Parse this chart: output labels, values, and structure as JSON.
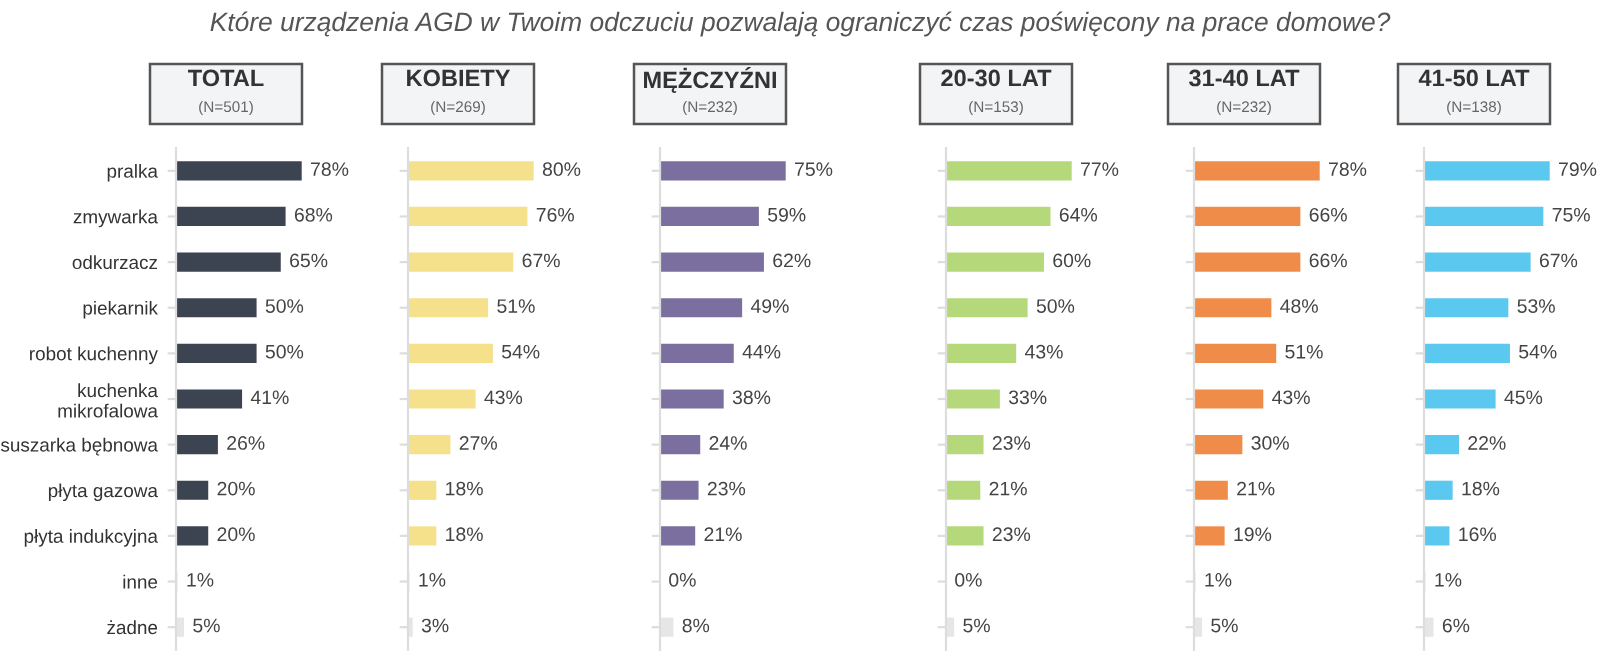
{
  "chart_data": [
    {
      "type": "bar",
      "orientation": "horizontal",
      "title": "TOTAL",
      "subtitle": "(N=501)",
      "annotations": [
        "Które urządzenia AGD w Twoim odczuciu pozwalają ograniczyć czas poświęcony na prace domowe?"
      ],
      "categories": [
        "pralka",
        "zmywarka",
        "odkurzacz",
        "piekarnik",
        "robot kuchenny",
        "kuchenka\nmikrofalowa",
        "suszarka bębnowa",
        "płyta gazowa",
        "płyta indukcyjna",
        "inne",
        "żadne"
      ],
      "tick_labels": "y",
      "series": [
        {
          "colors": [
            "#3d4451",
            "#3d4451",
            "#3d4451",
            "#3d4451",
            "#3d4451",
            "#3d4451",
            "#3d4451",
            "#3d4451",
            "#3d4451",
            "#e6e6e6",
            "#e6e6e6"
          ],
          "values": [
            78,
            68,
            65,
            50,
            50,
            41,
            26,
            20,
            20,
            1,
            5
          ],
          "value_labels": [
            "78%",
            "68%",
            "65%",
            "50%",
            "50%",
            "41%",
            "26%",
            "20%",
            "20%",
            "1%",
            "5%"
          ]
        }
      ]
    },
    {
      "type": "bar",
      "orientation": "horizontal",
      "title": "KOBIETY",
      "subtitle": "(N=269)",
      "categories": [
        null,
        null,
        null,
        null,
        null,
        null,
        null,
        null,
        null,
        null,
        null
      ],
      "tick_labels": false,
      "series": [
        {
          "colors": [
            "#f5e08c",
            "#f5e08c",
            "#f5e08c",
            "#f5e08c",
            "#f5e08c",
            "#f5e08c",
            "#f5e08c",
            "#f5e08c",
            "#f5e08c",
            "#e6e6e6",
            "#e6e6e6"
          ],
          "values": [
            80,
            76,
            67,
            51,
            54,
            43,
            27,
            18,
            18,
            1,
            3
          ],
          "value_labels": [
            "80%",
            "76%",
            "67%",
            "51%",
            "54%",
            "43%",
            "27%",
            "18%",
            "18%",
            "1%",
            "3%"
          ]
        }
      ]
    },
    {
      "type": "bar",
      "orientation": "horizontal",
      "title": "MĘŻCZYŹNI",
      "subtitle": "(N=232)",
      "categories": [
        null,
        null,
        null,
        null,
        null,
        null,
        null,
        null,
        null,
        null,
        null
      ],
      "tick_labels": false,
      "series": [
        {
          "colors": [
            "#7b6fa0",
            "#7b6fa0",
            "#7b6fa0",
            "#7b6fa0",
            "#7b6fa0",
            "#7b6fa0",
            "#7b6fa0",
            "#7b6fa0",
            "#7b6fa0",
            "#e6e6e6",
            "#e6e6e6"
          ],
          "values": [
            75,
            59,
            62,
            49,
            44,
            38,
            24,
            23,
            21,
            0,
            8
          ],
          "value_labels": [
            "75%",
            "59%",
            "62%",
            "49%",
            "44%",
            "38%",
            "24%",
            "23%",
            "21%",
            "0%",
            "8%"
          ]
        }
      ]
    },
    {
      "type": "bar",
      "orientation": "horizontal",
      "title": "20-30 LAT",
      "subtitle": "(N=153)",
      "categories": [
        null,
        null,
        null,
        null,
        null,
        null,
        null,
        null,
        null,
        null,
        null
      ],
      "tick_labels": false,
      "series": [
        {
          "colors": [
            "#b5d97a",
            "#b5d97a",
            "#b5d97a",
            "#b5d97a",
            "#b5d97a",
            "#b5d97a",
            "#b5d97a",
            "#b5d97a",
            "#b5d97a",
            "#e6e6e6",
            "#e6e6e6"
          ],
          "values": [
            77,
            64,
            60,
            50,
            43,
            33,
            23,
            21,
            23,
            0,
            5
          ],
          "value_labels": [
            "77%",
            "64%",
            "60%",
            "50%",
            "43%",
            "33%",
            "23%",
            "21%",
            "23%",
            "0%",
            "5%"
          ]
        }
      ]
    },
    {
      "type": "bar",
      "orientation": "horizontal",
      "title": "31-40 LAT",
      "subtitle": "(N=232)",
      "categories": [
        null,
        null,
        null,
        null,
        null,
        null,
        null,
        null,
        null,
        null,
        null
      ],
      "tick_labels": false,
      "series": [
        {
          "colors": [
            "#f08c4a",
            "#f08c4a",
            "#f08c4a",
            "#f08c4a",
            "#f08c4a",
            "#f08c4a",
            "#f08c4a",
            "#f08c4a",
            "#f08c4a",
            "#e6e6e6",
            "#e6e6e6"
          ],
          "values": [
            78,
            66,
            66,
            48,
            51,
            43,
            30,
            21,
            19,
            1,
            5
          ],
          "value_labels": [
            "78%",
            "66%",
            "66%",
            "48%",
            "51%",
            "43%",
            "30%",
            "21%",
            "19%",
            "1%",
            "5%"
          ]
        }
      ]
    },
    {
      "type": "bar",
      "orientation": "horizontal",
      "title": "41-50 LAT",
      "subtitle": "(N=138)",
      "categories": [
        null,
        null,
        null,
        null,
        null,
        null,
        null,
        null,
        null,
        null,
        null
      ],
      "tick_labels": false,
      "series": [
        {
          "colors": [
            "#5bc8ef",
            "#5bc8ef",
            "#5bc8ef",
            "#5bc8ef",
            "#5bc8ef",
            "#5bc8ef",
            "#5bc8ef",
            "#5bc8ef",
            "#5bc8ef",
            "#e6e6e6",
            "#e6e6e6"
          ],
          "values": [
            79,
            75,
            67,
            53,
            54,
            45,
            22,
            18,
            16,
            1,
            6
          ],
          "value_labels": [
            "79%",
            "75%",
            "67%",
            "53%",
            "54%",
            "45%",
            "22%",
            "18%",
            "16%",
            "1%",
            "6%"
          ]
        }
      ]
    }
  ]
}
